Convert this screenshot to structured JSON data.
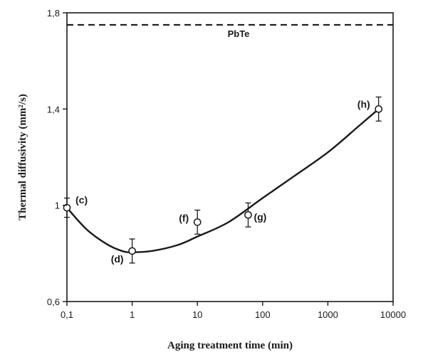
{
  "chart_data": {
    "type": "scatter",
    "xlabel": "Aging treatment time (min)",
    "ylabel": "Thermal diffusivity (mm²/s)",
    "xscale": "log",
    "xlim": [
      0.1,
      10000
    ],
    "ylim": [
      0.6,
      1.8
    ],
    "xticks": [
      0.1,
      1,
      10,
      100,
      1000,
      10000
    ],
    "xtick_labels": [
      "0,1",
      "1",
      "10",
      "100",
      "1000",
      "10000"
    ],
    "yticks": [
      0.6,
      1.0,
      1.4,
      1.8
    ],
    "ytick_labels": [
      "0,6",
      "1",
      "1,4",
      "1,8"
    ],
    "grid": false,
    "series": [
      {
        "marker": "open-circle",
        "x": [
          0.1,
          1,
          10,
          60,
          6000
        ],
        "y": [
          0.99,
          0.81,
          0.93,
          0.96,
          1.4
        ],
        "yerr": [
          0.04,
          0.05,
          0.05,
          0.05,
          0.05
        ],
        "labels": [
          "(c)",
          "(d)",
          "(f)",
          "(g)",
          "(h)"
        ]
      }
    ],
    "fit_curve": {
      "style": "solid",
      "x": [
        0.1,
        0.2,
        0.4,
        0.7,
        1,
        2,
        5,
        10,
        30,
        100,
        300,
        1000,
        3000,
        6000
      ],
      "y": [
        0.99,
        0.9,
        0.84,
        0.81,
        0.805,
        0.81,
        0.835,
        0.87,
        0.93,
        1.03,
        1.12,
        1.22,
        1.33,
        1.4
      ]
    },
    "reference_lines": [
      {
        "label": "PbTe",
        "y": 1.75,
        "style": "dashed"
      }
    ],
    "colors": {
      "axis": "#1a1a1a",
      "curve": "#1a1a1a",
      "marker_fill": "#ffffff"
    }
  }
}
